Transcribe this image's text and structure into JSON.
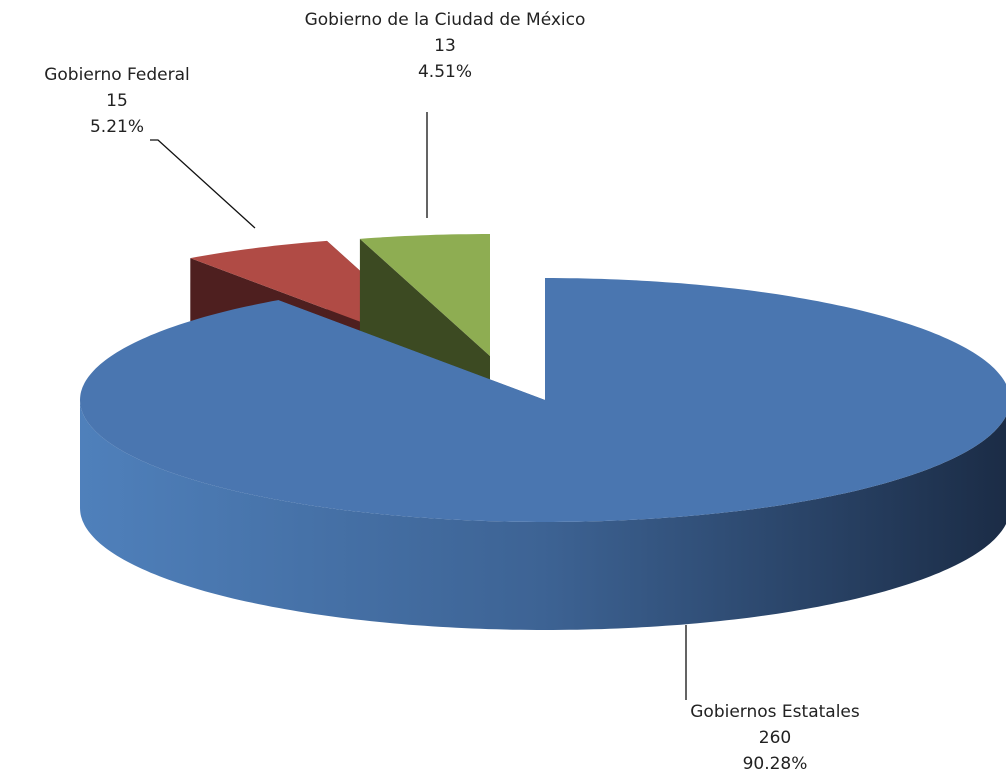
{
  "chart_data": {
    "type": "pie3d",
    "categories": [
      "Gobiernos Estatales",
      "Gobierno Federal",
      "Gobierno de la Ciudad de México"
    ],
    "values": [
      260,
      15,
      13
    ],
    "percent_labels": [
      "90.28%",
      "5.21%",
      "4.51%"
    ],
    "colors": [
      "#4a76b0",
      "#b04b45",
      "#8ead52"
    ]
  }
}
